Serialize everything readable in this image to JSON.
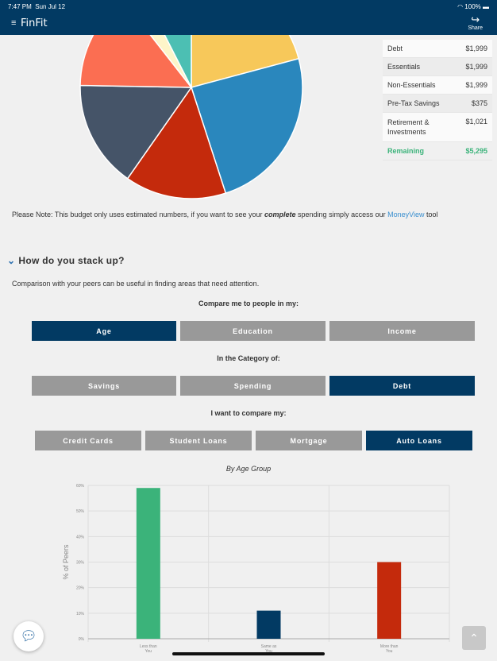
{
  "status": {
    "time": "7:47 PM",
    "date": "Sun Jul 12",
    "battery": "100%"
  },
  "nav": {
    "logo": "FinFit",
    "share": "Share",
    "menu_icon": "hamburger-icon",
    "share_icon": "share-arrow-icon"
  },
  "pie_chart": {
    "colors": [
      "#f7c85a",
      "#2a87bd",
      "#c42a0c",
      "#455468",
      "#fb6e52",
      "#fdf5c9",
      "#4cbfb3"
    ],
    "degrees": [
      75,
      87,
      53,
      56,
      51,
      11,
      27
    ]
  },
  "summary": [
    {
      "label": "Debt",
      "value": "$1,999"
    },
    {
      "label": "Essentials",
      "value": "$1,999"
    },
    {
      "label": "Non-Essentials",
      "value": "$1,999"
    },
    {
      "label": "Pre-Tax Savings",
      "value": "$375"
    },
    {
      "label": "Retirement & Investments",
      "value": "$1,021"
    },
    {
      "label": "Remaining",
      "value": "$5,295"
    }
  ],
  "note": {
    "prefix": "Please Note: This budget only uses estimated numbers, if you want to see your ",
    "emph": "complete",
    "middle": " spending simply access our ",
    "link": "MoneyView",
    "suffix": " tool"
  },
  "section": {
    "title": "How do you stack up?",
    "intro": "Comparison with your peers can be useful in finding areas that need attention."
  },
  "compare": {
    "label": "Compare me to people in my:",
    "options": [
      "Age",
      "Education",
      "Income"
    ],
    "selected": 0
  },
  "category": {
    "label": "In the Category of:",
    "options": [
      "Savings",
      "Spending",
      "Debt"
    ],
    "selected": 2
  },
  "compare_my": {
    "label": "I want to compare my:",
    "options": [
      "Credit Cards",
      "Student Loans",
      "Mortgage",
      "Auto Loans"
    ],
    "selected": 3
  },
  "chart_data": {
    "type": "bar",
    "title": "By Age Group",
    "ylabel": "% of Peers",
    "categories": [
      "Less than You",
      "Same as You",
      "More than You"
    ],
    "values": [
      59,
      11,
      30
    ],
    "colors": [
      "#3bb37a",
      "#023a63",
      "#c42a0c"
    ],
    "ylim": [
      0,
      60
    ],
    "yticks": [
      "0%",
      "10%",
      "20%",
      "30%",
      "40%",
      "50%",
      "60%"
    ],
    "grid": true
  }
}
